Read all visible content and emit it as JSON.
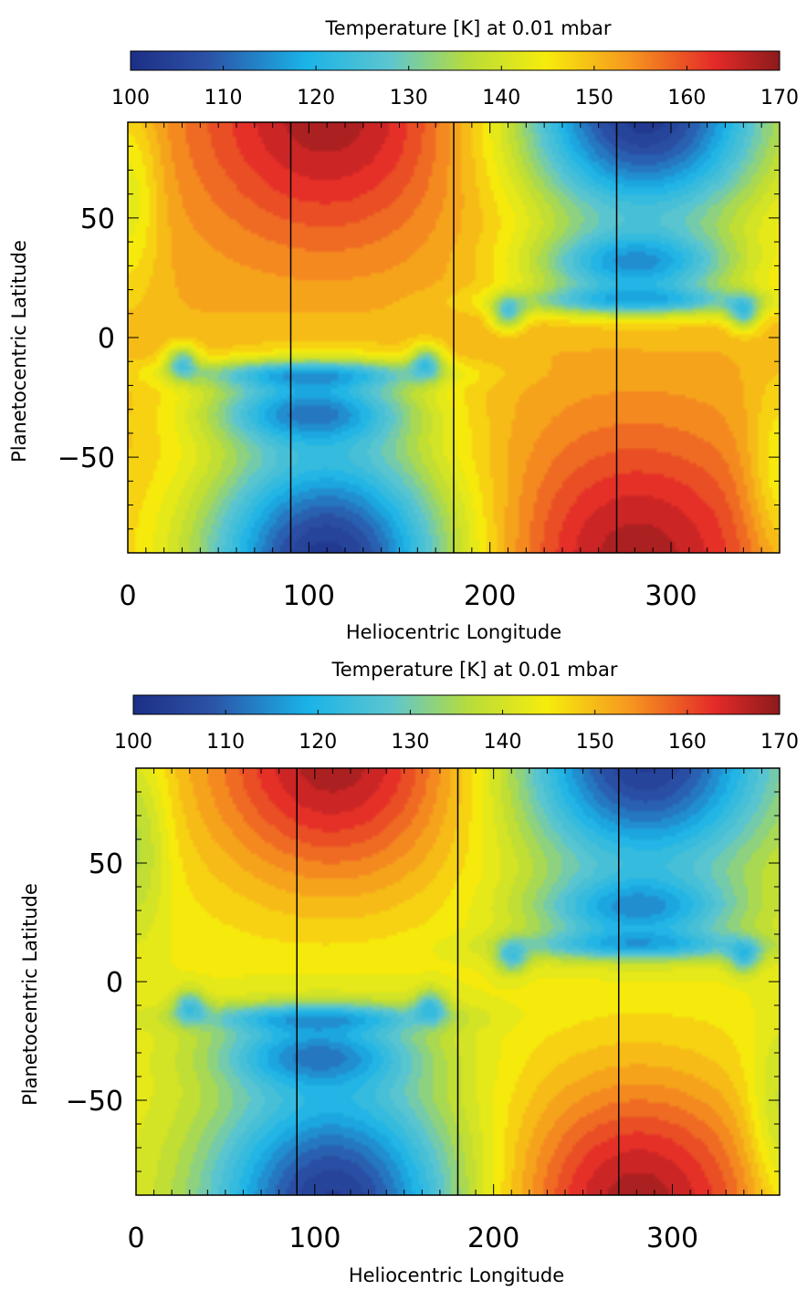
{
  "chart_data": [
    {
      "type": "heatmap",
      "title": "Temperature [K] at 0.01 mbar",
      "xlabel": "Heliocentric Longitude",
      "ylabel": "Planetocentric Latitude",
      "xlim": [
        0,
        360
      ],
      "ylim": [
        -90,
        90
      ],
      "colorbar": {
        "min": 100,
        "max": 170,
        "ticks": [
          "100",
          "110",
          "120",
          "130",
          "140",
          "150",
          "160",
          "170"
        ]
      },
      "xticks": [
        "0",
        "100",
        "200",
        "300"
      ],
      "yticks": [
        "50",
        "0",
        "−50"
      ],
      "vlines": [
        90,
        180,
        270
      ],
      "field": {
        "base_warm": 151,
        "cold_min": 102,
        "hot_max": 168,
        "lobe_cold": 124
      }
    },
    {
      "type": "heatmap",
      "title": "Temperature [K] at 0.01 mbar",
      "xlabel": "Heliocentric Longitude",
      "ylabel": "Planetocentric Latitude",
      "xlim": [
        0,
        360
      ],
      "ylim": [
        -90,
        90
      ],
      "colorbar": {
        "min": 100,
        "max": 170,
        "ticks": [
          "100",
          "110",
          "120",
          "130",
          "140",
          "150",
          "160",
          "170"
        ]
      },
      "xticks": [
        "0",
        "100",
        "200",
        "300"
      ],
      "yticks": [
        "50",
        "0",
        "−50"
      ],
      "vlines": [
        90,
        180,
        270
      ],
      "field": {
        "base_warm": 144,
        "cold_min": 103,
        "hot_max": 168,
        "lobe_cold": 122
      }
    }
  ]
}
